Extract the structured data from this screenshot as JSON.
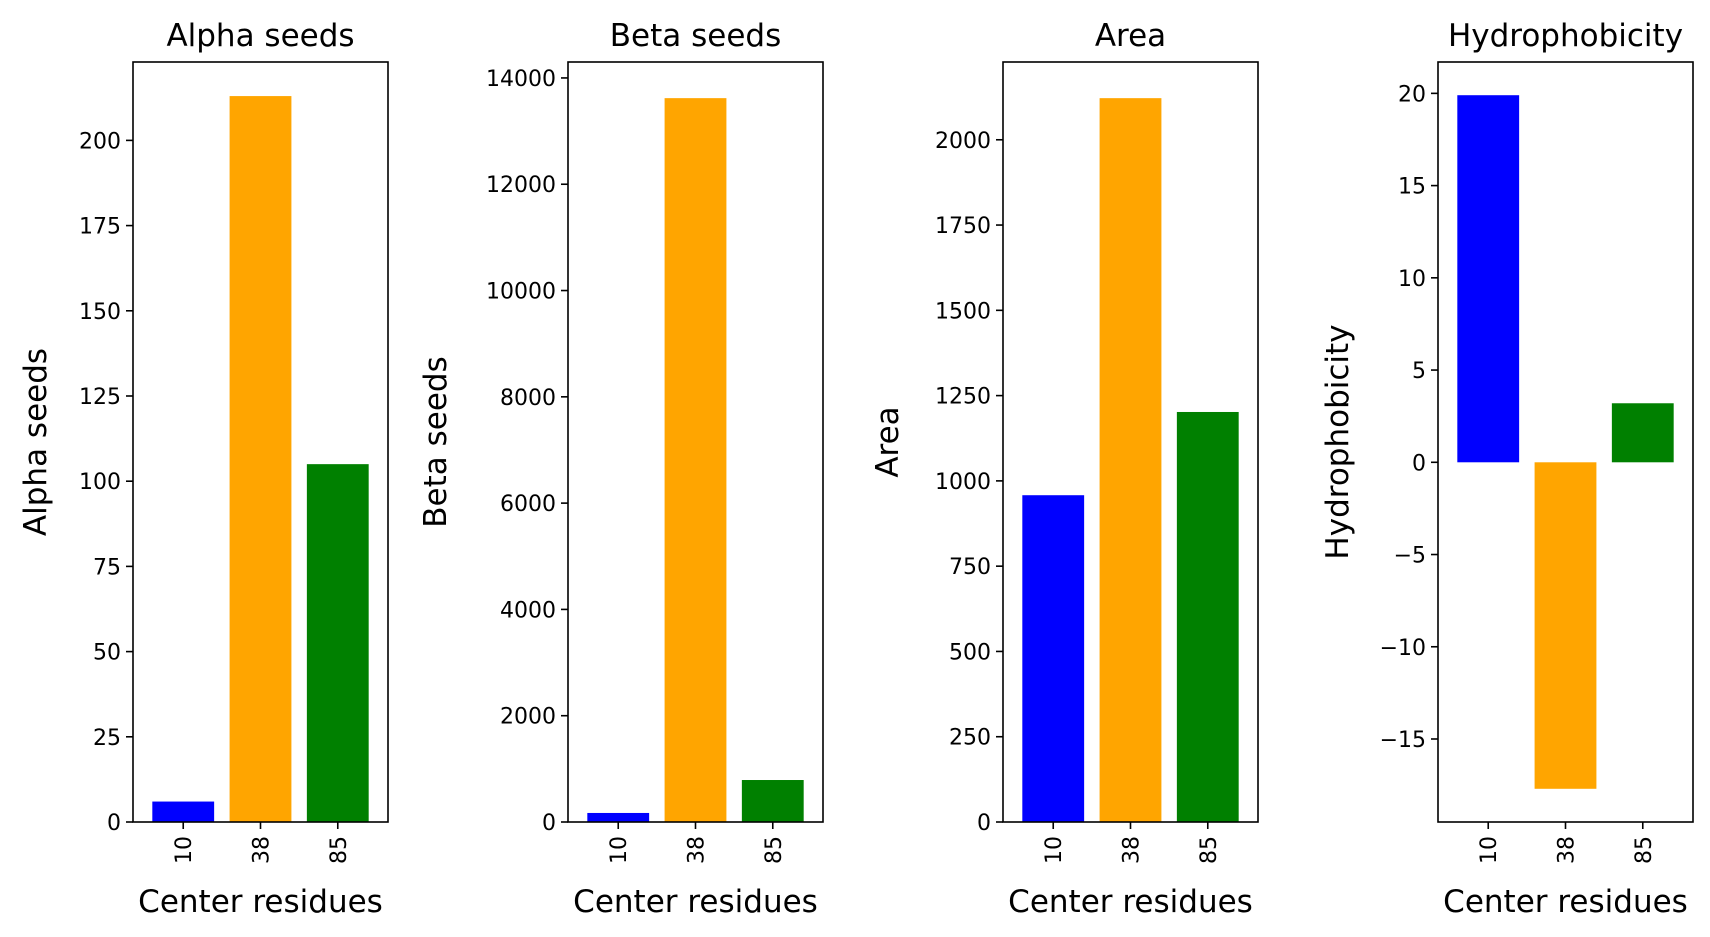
{
  "chart_data": [
    {
      "type": "bar",
      "title": "Alpha seeds",
      "xlabel": "Center residues",
      "ylabel": "Alpha seeds",
      "categories": [
        "10",
        "38",
        "85"
      ],
      "values": [
        6,
        213,
        105
      ],
      "colors": [
        "#0000ff",
        "#ffa500",
        "#008000"
      ],
      "ylim": [
        0,
        223
      ],
      "yticks": [
        0,
        25,
        50,
        75,
        100,
        125,
        150,
        175,
        200
      ],
      "ytick_labels": [
        "0",
        "25",
        "50",
        "75",
        "100",
        "125",
        "150",
        "175",
        "200"
      ]
    },
    {
      "type": "bar",
      "title": "Beta seeds",
      "xlabel": "Center residues",
      "ylabel": "Beta seeds",
      "categories": [
        "10",
        "38",
        "85"
      ],
      "values": [
        170,
        13620,
        790
      ],
      "colors": [
        "#0000ff",
        "#ffa500",
        "#008000"
      ],
      "ylim": [
        0,
        14300
      ],
      "yticks": [
        0,
        2000,
        4000,
        6000,
        8000,
        10000,
        12000,
        14000
      ],
      "ytick_labels": [
        "0",
        "2000",
        "4000",
        "6000",
        "8000",
        "10000",
        "12000",
        "14000"
      ]
    },
    {
      "type": "bar",
      "title": "Area",
      "xlabel": "Center residues",
      "ylabel": "Area",
      "categories": [
        "10",
        "38",
        "85"
      ],
      "values": [
        958,
        2122,
        1202
      ],
      "colors": [
        "#0000ff",
        "#ffa500",
        "#008000"
      ],
      "ylim": [
        0,
        2228
      ],
      "yticks": [
        0,
        250,
        500,
        750,
        1000,
        1250,
        1500,
        1750,
        2000
      ],
      "ytick_labels": [
        "0",
        "250",
        "500",
        "750",
        "1000",
        "1250",
        "1500",
        "1750",
        "2000"
      ]
    },
    {
      "type": "bar",
      "title": "Hydrophobicity",
      "xlabel": "Center residues",
      "ylabel": "Hydrophobicity",
      "categories": [
        "10",
        "38",
        "85"
      ],
      "values": [
        19.9,
        -17.7,
        3.2
      ],
      "colors": [
        "#0000ff",
        "#ffa500",
        "#008000"
      ],
      "ylim": [
        -19.5,
        21.7
      ],
      "yticks": [
        -15,
        -10,
        -5,
        0,
        5,
        10,
        15,
        20
      ],
      "ytick_labels": [
        "−15",
        "−10",
        "−5",
        "0",
        "5",
        "10",
        "15",
        "20"
      ]
    }
  ]
}
